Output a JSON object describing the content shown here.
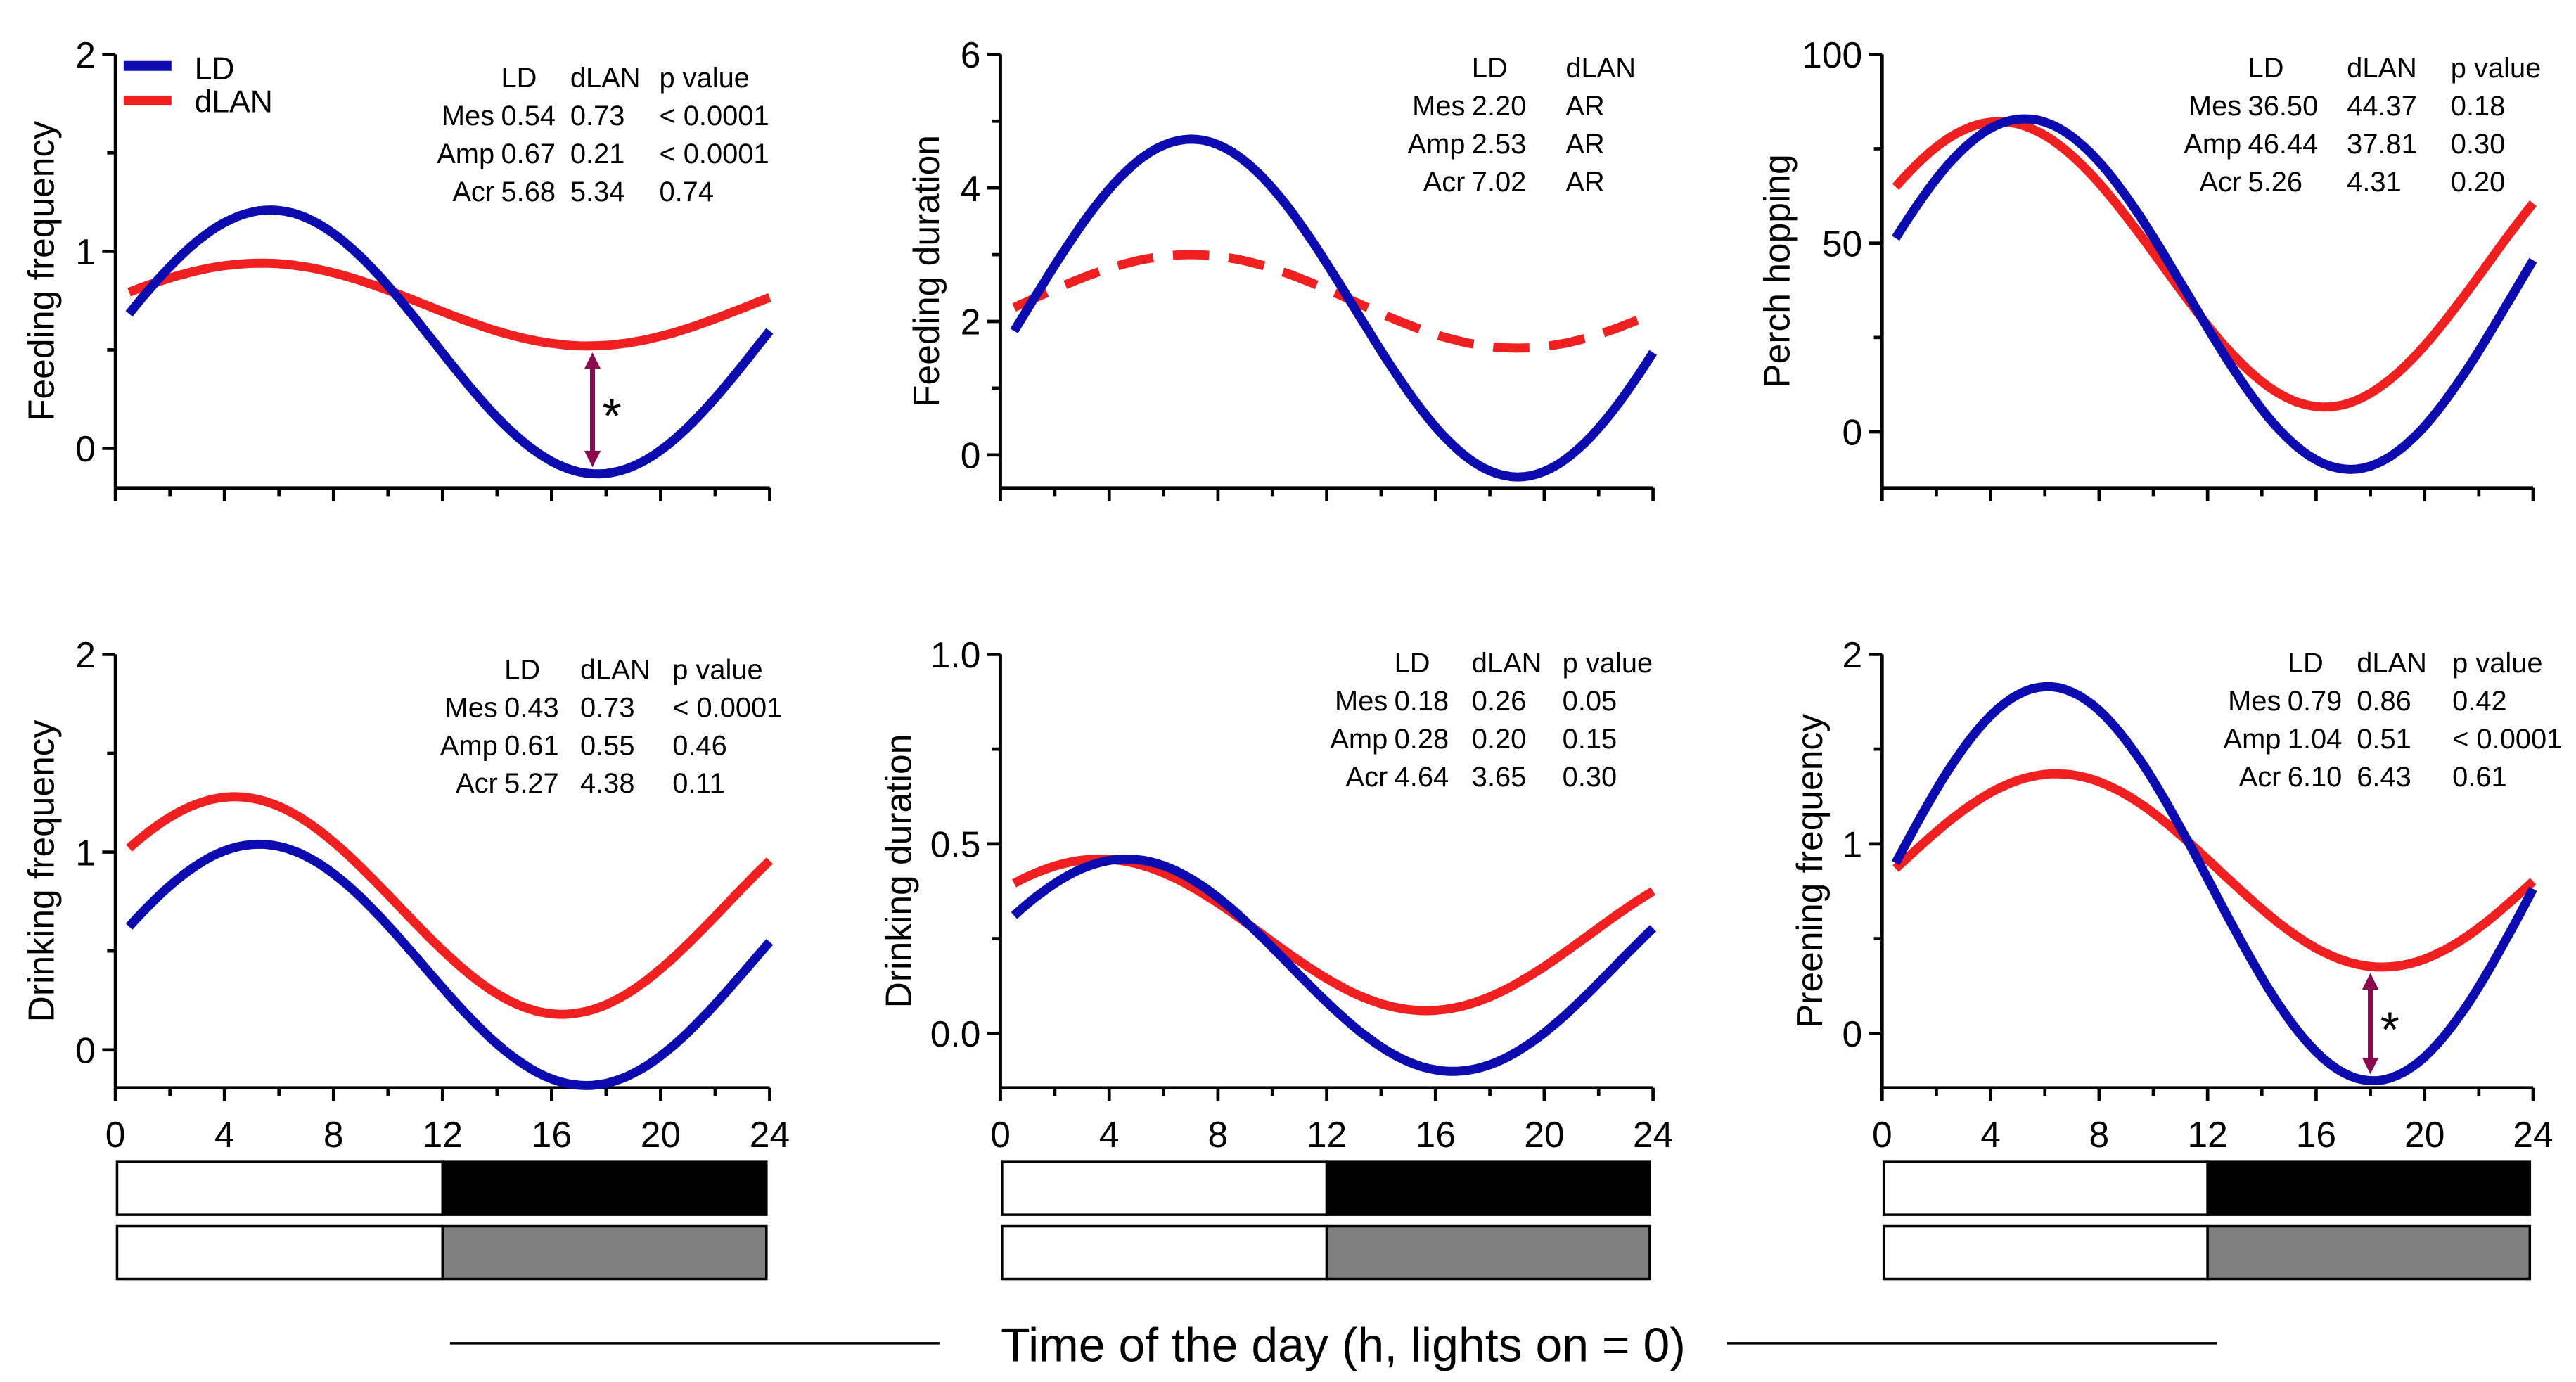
{
  "colors": {
    "LD": "#0b0bb0",
    "dLAN": "#f02020",
    "arrow": "#8a0a4e",
    "dark_bar": "#000000",
    "dlan_bar": "#808080"
  },
  "x_axis_label": "Time of the day (h, lights on = 0)",
  "legend": [
    {
      "name": "LD",
      "color": "#0b0bb0"
    },
    {
      "name": "dLAN",
      "color": "#f02020"
    }
  ],
  "chart_data": [
    {
      "type": "line",
      "ylabel": "Feeding frequency",
      "xlim": [
        0,
        24
      ],
      "ylim": [
        -0.2,
        2
      ],
      "yticks": [
        "0",
        "1",
        "2"
      ],
      "ytick_values": [
        0,
        1,
        2
      ],
      "table": {
        "header": [
          "LD",
          "dLAN",
          "p value"
        ],
        "rows": [
          [
            "Mes",
            "0.54",
            "0.73",
            "< 0.0001"
          ],
          [
            "Amp",
            "0.67",
            "0.21",
            "< 0.0001"
          ],
          [
            "Acr",
            "5.68",
            "5.34",
            "0.74"
          ]
        ]
      },
      "series": [
        {
          "name": "LD",
          "mesor": 0.54,
          "amplitude": 0.67,
          "acrophase": 5.68
        },
        {
          "name": "dLAN",
          "mesor": 0.73,
          "amplitude": 0.21,
          "acrophase": 5.34
        }
      ],
      "annotation": {
        "text": "*",
        "x": 17.5
      }
    },
    {
      "type": "line",
      "ylabel": "Feeding duration",
      "xlim": [
        0,
        24
      ],
      "ylim": [
        -0.5,
        6
      ],
      "yticks": [
        "0",
        "2",
        "4",
        "6"
      ],
      "ytick_values": [
        0,
        2,
        4,
        6
      ],
      "table": {
        "header": [
          "LD",
          "dLAN"
        ],
        "rows": [
          [
            "Mes",
            "2.20",
            "AR"
          ],
          [
            "Amp",
            "2.53",
            "AR"
          ],
          [
            "Acr",
            "7.02",
            "AR"
          ]
        ]
      },
      "series": [
        {
          "name": "LD",
          "mesor": 2.2,
          "amplitude": 2.53,
          "acrophase": 7.02
        },
        {
          "name": "dLAN",
          "mesor": 2.3,
          "amplitude": 0.7,
          "acrophase": 7.0,
          "dashed": true
        }
      ]
    },
    {
      "type": "line",
      "ylabel": "Perch hopping",
      "xlim": [
        0,
        24
      ],
      "ylim": [
        -15,
        100
      ],
      "yticks": [
        "0",
        "50",
        "100"
      ],
      "ytick_values": [
        0,
        50,
        100
      ],
      "table": {
        "header": [
          "LD",
          "dLAN",
          "p value"
        ],
        "rows": [
          [
            "Mes",
            "36.50",
            "44.37",
            "0.18"
          ],
          [
            "Amp",
            "46.44",
            "37.81",
            "0.30"
          ],
          [
            "Acr",
            "5.26",
            "4.31",
            "0.20"
          ]
        ]
      },
      "series": [
        {
          "name": "LD",
          "mesor": 36.5,
          "amplitude": 46.44,
          "acrophase": 5.26
        },
        {
          "name": "dLAN",
          "mesor": 44.37,
          "amplitude": 37.81,
          "acrophase": 4.31
        }
      ]
    },
    {
      "type": "line",
      "ylabel": "Drinking frequency",
      "xlim": [
        0,
        24
      ],
      "ylim": [
        -0.2,
        2
      ],
      "yticks": [
        "0",
        "1",
        "2"
      ],
      "ytick_values": [
        0,
        1,
        2
      ],
      "xticks": [
        "0",
        "4",
        "8",
        "12",
        "16",
        "20",
        "24"
      ],
      "table": {
        "header": [
          "LD",
          "dLAN",
          "p value"
        ],
        "rows": [
          [
            "Mes",
            "0.43",
            "0.73",
            "< 0.0001"
          ],
          [
            "Amp",
            "0.61",
            "0.55",
            "0.46"
          ],
          [
            "Acr",
            "5.27",
            "4.38",
            "0.11"
          ]
        ]
      },
      "series": [
        {
          "name": "LD",
          "mesor": 0.43,
          "amplitude": 0.61,
          "acrophase": 5.27
        },
        {
          "name": "dLAN",
          "mesor": 0.73,
          "amplitude": 0.55,
          "acrophase": 4.38
        }
      ]
    },
    {
      "type": "line",
      "ylabel": "Drinking duration",
      "xlim": [
        0,
        24
      ],
      "ylim": [
        -0.15,
        1.0
      ],
      "yticks": [
        "0.0",
        "0.5",
        "1.0"
      ],
      "ytick_values": [
        0,
        0.5,
        1.0
      ],
      "xticks": [
        "0",
        "4",
        "8",
        "12",
        "16",
        "20",
        "24"
      ],
      "table": {
        "header": [
          "LD",
          "dLAN",
          "p value"
        ],
        "rows": [
          [
            "Mes",
            "0.18",
            "0.26",
            "0.05"
          ],
          [
            "Amp",
            "0.28",
            "0.20",
            "0.15"
          ],
          [
            "Acr",
            "4.64",
            "3.65",
            "0.30"
          ]
        ]
      },
      "series": [
        {
          "name": "LD",
          "mesor": 0.18,
          "amplitude": 0.28,
          "acrophase": 4.64
        },
        {
          "name": "dLAN",
          "mesor": 0.26,
          "amplitude": 0.2,
          "acrophase": 3.65
        }
      ]
    },
    {
      "type": "line",
      "ylabel": "Preening frequency",
      "xlim": [
        0,
        24
      ],
      "ylim": [
        -0.15,
        2
      ],
      "yticks": [
        "0",
        "1",
        "2"
      ],
      "ytick_values": [
        0,
        1,
        2
      ],
      "xticks": [
        "0",
        "4",
        "8",
        "12",
        "16",
        "20",
        "24"
      ],
      "table": {
        "header": [
          "LD",
          "dLAN",
          "p value"
        ],
        "rows": [
          [
            "Mes",
            "0.79",
            "0.86",
            "0.42"
          ],
          [
            "Amp",
            "1.04",
            "0.51",
            "< 0.0001"
          ],
          [
            "Acr",
            "6.10",
            "6.43",
            "0.61"
          ]
        ]
      },
      "series": [
        {
          "name": "LD",
          "mesor": 0.79,
          "amplitude": 1.04,
          "acrophase": 6.1
        },
        {
          "name": "dLAN",
          "mesor": 0.86,
          "amplitude": 0.51,
          "acrophase": 6.43
        }
      ],
      "annotation": {
        "text": "*",
        "x": 18.0
      }
    }
  ]
}
